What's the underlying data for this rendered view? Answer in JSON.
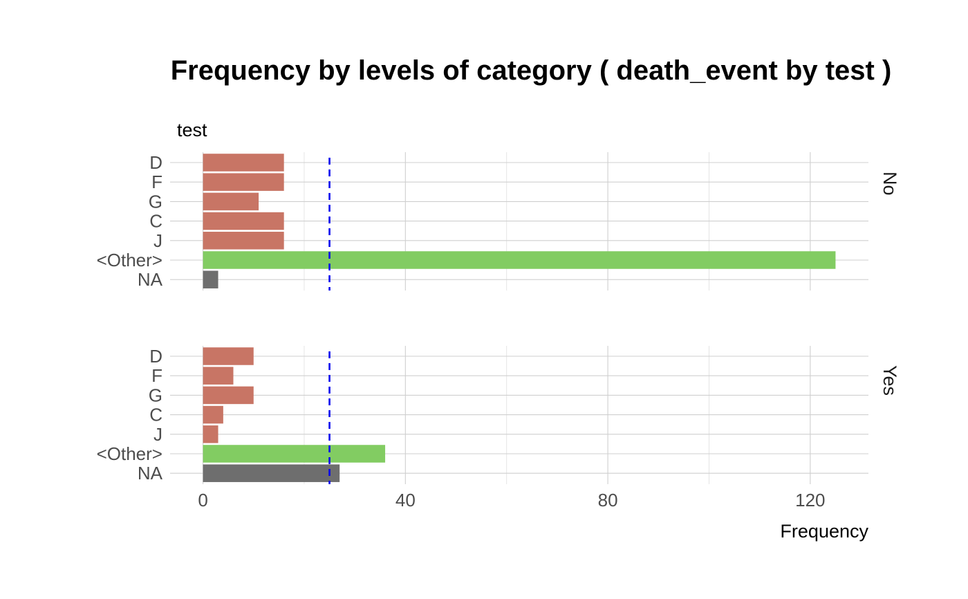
{
  "chart_data": {
    "type": "bar",
    "orientation": "horizontal",
    "title": "Frequency by levels of category ( death_event by test )",
    "xlabel": "Frequency",
    "ylabel": "test",
    "categories": [
      "D",
      "F",
      "G",
      "C",
      "J",
      "<Other>",
      "NA"
    ],
    "xlim": [
      -6.5,
      131.5
    ],
    "x_ticks": [
      0,
      40,
      80,
      120
    ],
    "grid": true,
    "reference_line": {
      "value": 25,
      "style": "dashed",
      "color": "#0000ee"
    },
    "colors": {
      "level": "#c87565",
      "other": "#82cc62",
      "na": "#6e6e6e"
    },
    "panels": [
      {
        "name": "No",
        "values": [
          16,
          16,
          11,
          16,
          16,
          125,
          3
        ]
      },
      {
        "name": "Yes",
        "values": [
          10,
          6,
          10,
          4,
          3,
          36,
          27
        ]
      }
    ]
  }
}
